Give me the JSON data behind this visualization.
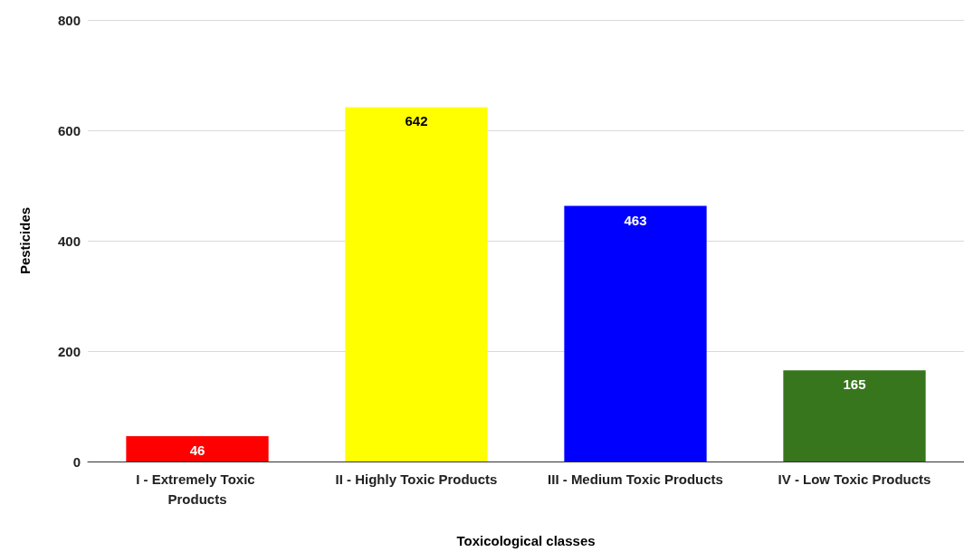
{
  "chart_data": {
    "type": "bar",
    "xlabel": "Toxicological classes",
    "ylabel": "Pesticides",
    "categories": [
      "I - Extremely Toxic Products",
      "II - Highly Toxic Products",
      "III - Medium Toxic Products",
      "IV - Low Toxic Products"
    ],
    "values": [
      46,
      642,
      463,
      165
    ],
    "colors": [
      "#ff0000",
      "#ffff00",
      "#0000ff",
      "#38761d"
    ],
    "ylim": [
      0,
      800
    ],
    "yticks": [
      0,
      200,
      400,
      600,
      800
    ],
    "grid": "y",
    "data_labels": true
  }
}
